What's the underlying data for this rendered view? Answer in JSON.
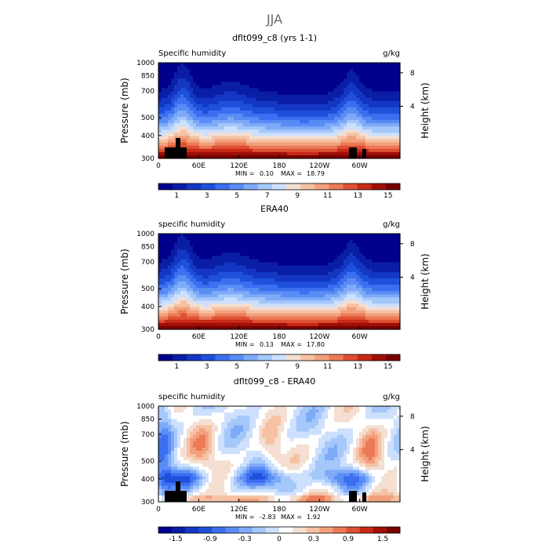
{
  "figure": {
    "title": "JJA"
  },
  "chart_data": [
    {
      "type": "heatmap",
      "title": "dflt099_c8 (yrs 1-1)",
      "variable_label": "Specific humidity",
      "units": "g/kg",
      "ylabel": "Pressure (mb)",
      "ylabel_right": "Height (km)",
      "x_ticks": [
        "0",
        "60E",
        "120E",
        "180",
        "120W",
        "60W"
      ],
      "y_ticks": [
        "300",
        "400",
        "500",
        "700",
        "850",
        "1000"
      ],
      "y_right_ticks": [
        "8",
        "4"
      ],
      "min_label": "MIN =",
      "min_value": "0.10",
      "max_label": "MAX =",
      "max_value": "18.79",
      "colorbar_labels": [
        "1",
        "3",
        "5",
        "7",
        "9",
        "11",
        "13",
        "15"
      ],
      "colorbar_colors": [
        "#00008c",
        "#0a1ea5",
        "#1437c3",
        "#1e50dc",
        "#3c6ef0",
        "#5a8cf5",
        "#7eaaf8",
        "#a5c8fb",
        "#cde0fd",
        "#f4dfd2",
        "#f6c1a4",
        "#f2a07c",
        "#ec7a56",
        "#de5032",
        "#c82a17",
        "#a00f07",
        "#780000"
      ],
      "field": "humidity",
      "terrain": true
    },
    {
      "type": "heatmap",
      "title": "ERA40",
      "variable_label": "specific humidity",
      "units": "g/kg",
      "ylabel": "Pressure (mb)",
      "ylabel_right": "Height (km)",
      "x_ticks": [
        "0",
        "60E",
        "120E",
        "180",
        "120W",
        "60W"
      ],
      "y_ticks": [
        "300",
        "400",
        "500",
        "700",
        "850",
        "1000"
      ],
      "y_right_ticks": [
        "8",
        "4"
      ],
      "min_label": "MIN =",
      "min_value": "0.13",
      "max_label": "MAX =",
      "max_value": "17.80",
      "colorbar_labels": [
        "1",
        "3",
        "5",
        "7",
        "9",
        "11",
        "13",
        "15"
      ],
      "colorbar_colors": [
        "#00008c",
        "#0a1ea5",
        "#1437c3",
        "#1e50dc",
        "#3c6ef0",
        "#5a8cf5",
        "#7eaaf8",
        "#a5c8fb",
        "#cde0fd",
        "#f4dfd2",
        "#f6c1a4",
        "#f2a07c",
        "#ec7a56",
        "#de5032",
        "#c82a17",
        "#a00f07",
        "#780000"
      ],
      "field": "humidity",
      "terrain": false
    },
    {
      "type": "heatmap",
      "title": "dflt099_c8 - ERA40",
      "variable_label": "specific humidity",
      "units": "g/kg",
      "ylabel": "Pressure (mb)",
      "ylabel_right": "Height (km)",
      "x_ticks": [
        "0",
        "60E",
        "120E",
        "180",
        "120W",
        "60W"
      ],
      "y_ticks": [
        "300",
        "400",
        "500",
        "700",
        "850",
        "1000"
      ],
      "y_right_ticks": [
        "8",
        "4"
      ],
      "min_label": "MIN =",
      "min_value": "-2.83",
      "max_label": "MAX =",
      "max_value": "1.92",
      "colorbar_labels": [
        "-1.5",
        "-0.9",
        "-0.3",
        "0",
        "0.3",
        "0.9",
        "1.5"
      ],
      "colorbar_colors": [
        "#00008c",
        "#0a1ea5",
        "#1437c3",
        "#1e50dc",
        "#3c6ef0",
        "#5a8cf5",
        "#7eaaf8",
        "#a5c8fb",
        "#cde0fd",
        "#ffffff",
        "#f4dfd2",
        "#f6c1a4",
        "#f2a07c",
        "#ec7a56",
        "#de5032",
        "#c82a17",
        "#a00f07",
        "#780000"
      ],
      "field": "difference",
      "terrain": true
    }
  ]
}
